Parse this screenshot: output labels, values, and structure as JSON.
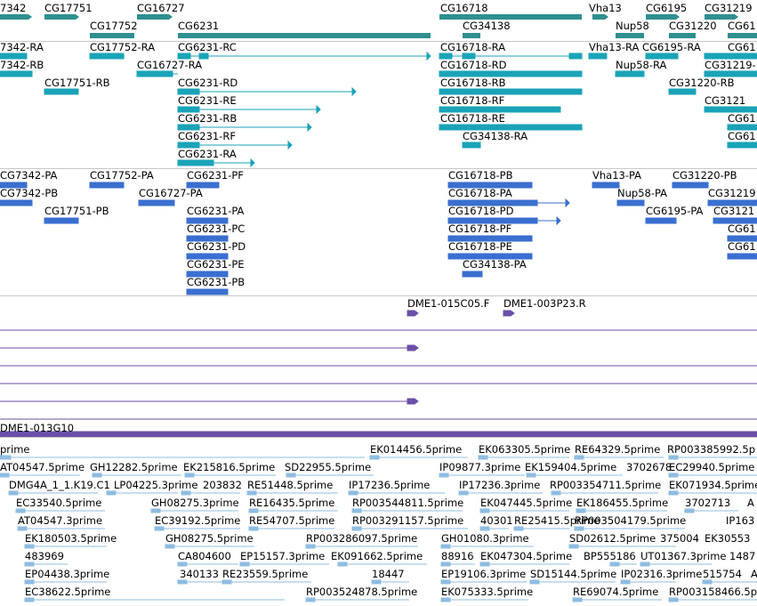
{
  "colors": {
    "gene": "#2f8f8f",
    "transcript": "#1aa3b8",
    "cds": "#3a6fd0",
    "clone": "#6b4fa8",
    "est": "#8fbce0",
    "divider": "#c8c8c8"
  },
  "tracks": {
    "genes": {
      "labels": [
        "7342",
        "CG17751",
        "CG16727",
        "CG16718",
        "Vha13",
        "CG6195",
        "CG31219",
        "CG17752",
        "CG6231",
        "CG34138",
        "Nup58",
        "CG31220",
        "CG61"
      ]
    },
    "transcripts": {
      "labels": [
        "7342-RA",
        "CG17752-RA",
        "CG6231-RC",
        "CG16718-RA",
        "Vha13-RA",
        "CG6195-RA",
        "CG61",
        "7342-RB",
        "CG16727-RA",
        "CG16718-RD",
        "Nup58-RA",
        "CG31219-",
        "CG17751-RB",
        "CG6231-RD",
        "CG16718-RB",
        "CG31220-RB",
        "CG6231-RE",
        "CG16718-RF",
        "CG3121",
        "CG6231-RB",
        "CG16718-RE",
        "CG61",
        "CG6231-RF",
        "CG34138-RA",
        "CG61",
        "CG6231-RA"
      ]
    },
    "proteins": {
      "labels": [
        "CG7342-PA",
        "CG17752-PA",
        "CG6231-PF",
        "CG16718-PB",
        "Vha13-PA",
        "CG31220-PB",
        "CG7342-PB",
        "CG16727-PA",
        "CG16718-PA",
        "Nup58-PA",
        "CG31219",
        "CG17751-PB",
        "CG6231-PA",
        "CG16718-PD",
        "CG6195-PA",
        "CG3121",
        "CG6231-PC",
        "CG16718-PF",
        "CG61",
        "CG6231-PD",
        "CG16718-PE",
        "CG61",
        "CG6231-PE",
        "CG34138-PA",
        "CG6231-PB"
      ]
    },
    "clones": {
      "labels": [
        "DME1-015C05.F",
        "DME1-003P23.R",
        "DME1-013G10"
      ]
    },
    "ests": {
      "labels": [
        "prime",
        "EK014456.5prime",
        "EK063305.5prime",
        "RE64329.5prime",
        "RP003385992.5p",
        "AT04547.5prime",
        "GH12282.5prime",
        "EK215816.5prime",
        "SD22955.5prime",
        "IP09877.3prime",
        "EK159404.5prime",
        "3702678",
        "EC29940.5prime",
        "DMG4A_1_1.K19.C1",
        "LP04225.3prime",
        "203832",
        "RE51448.5prime",
        "IP17236.5prime",
        "IP17236.3prime",
        "RP003354711.5prime",
        "EK071934.5prime",
        "EC33540.5prime",
        "GH08275.3prime",
        "RE16435.5prime",
        "RP003544811.5prime",
        "EK047445.5prime",
        "EK186455.5prime",
        "3702713",
        "A",
        "AT04547.3prime",
        "EC39192.5prime",
        "RE54707.5prime",
        "RP003291157.5prime",
        "40301",
        "RE25415.5prime",
        "RP003504179.5prime",
        "IP163",
        "EK180503.5prime",
        "GH08275.5prime",
        "RP003286097.5prime",
        "GH01080.3prime",
        "SD02612.5prime",
        "375004",
        "EK30553",
        "483969",
        "CA804600",
        "EP15157.3prime",
        "EK091662.5prime",
        "88916",
        "EK047304.5prime",
        "BP555186",
        "UT01367.3prime",
        "1487",
        "EP04438.3prime",
        "340133",
        "RE23559.5prime",
        "18447",
        "EP19106.3prime",
        "SD15144.5prime",
        "IP02316.3prime",
        "515754",
        "A",
        "EC38622.5prime",
        "RP003524878.5prime",
        "EK075333.5prime",
        "RE69074.5prime",
        "RP003158466.5p"
      ]
    }
  }
}
